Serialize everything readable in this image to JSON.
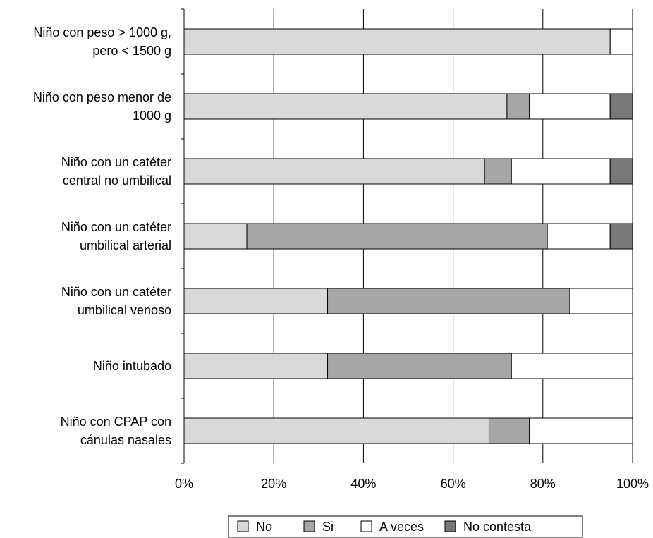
{
  "chart_data": {
    "type": "bar",
    "orientation": "horizontal",
    "stacked": true,
    "categories": [
      [
        "Niño con peso > 1000 g,",
        "pero < 1500 g"
      ],
      [
        "Niño con peso menor de",
        "1000 g"
      ],
      [
        "Niño con un catéter",
        "central no umbilical"
      ],
      [
        "Niño con un catéter",
        "umbilical arterial"
      ],
      [
        "Niño con un catéter",
        "umbilical venoso"
      ],
      [
        "Niño intubado"
      ],
      [
        "Niño con CPAP con",
        "cánulas nasales"
      ]
    ],
    "series": [
      {
        "name": "No",
        "color": "#d9d9d9",
        "values": [
          95,
          72,
          67,
          14,
          32,
          32,
          68
        ]
      },
      {
        "name": "Si",
        "color": "#a6a6a6",
        "values": [
          0,
          5,
          6,
          67,
          54,
          41,
          9
        ]
      },
      {
        "name": "A veces",
        "color": "#ffffff",
        "values": [
          5,
          18,
          22,
          14,
          14,
          27,
          23
        ]
      },
      {
        "name": "No contesta",
        "color": "#777777",
        "values": [
          0,
          5,
          5,
          5,
          0,
          0,
          0
        ]
      }
    ],
    "xlim": [
      0,
      100
    ],
    "xticks": [
      "0%",
      "20%",
      "40%",
      "60%",
      "80%",
      "100%"
    ],
    "grid": "vertical",
    "legend_position": "bottom"
  }
}
